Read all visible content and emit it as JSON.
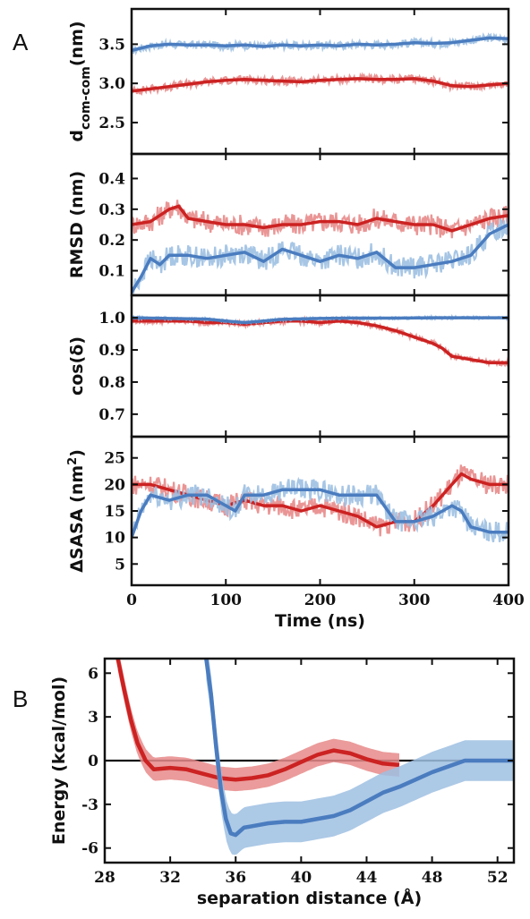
{
  "panel_labels": {
    "a": "A",
    "b": "B"
  },
  "colors": {
    "red": "#cc2222",
    "red_light": "#e88a8a",
    "blue": "#4a7cbf",
    "blue_light": "#9dc0e2",
    "axis": "#111111"
  },
  "chart_data": [
    {
      "id": "dcom",
      "type": "line",
      "ylabel": "d",
      "ylabel_sub": "com-com",
      "ylabel_suffix": "(nm)",
      "xlim": [
        0,
        400
      ],
      "ylim": [
        2.1,
        3.95
      ],
      "yticks": [
        "2.5",
        "3.0",
        "3.5"
      ],
      "yticks_values": [
        2.5,
        3.0,
        3.5
      ],
      "series": [
        {
          "color": "blue",
          "x": [
            0,
            20,
            40,
            60,
            80,
            100,
            120,
            140,
            160,
            180,
            200,
            220,
            240,
            260,
            280,
            300,
            320,
            340,
            360,
            380,
            400
          ],
          "y": [
            3.42,
            3.48,
            3.5,
            3.49,
            3.49,
            3.48,
            3.49,
            3.47,
            3.49,
            3.48,
            3.49,
            3.48,
            3.5,
            3.49,
            3.5,
            3.52,
            3.51,
            3.52,
            3.55,
            3.58,
            3.57
          ],
          "noise": 0.05
        },
        {
          "color": "red",
          "x": [
            0,
            20,
            40,
            60,
            80,
            100,
            120,
            140,
            160,
            180,
            200,
            220,
            240,
            260,
            280,
            300,
            320,
            340,
            360,
            380,
            400
          ],
          "y": [
            2.9,
            2.93,
            2.96,
            2.99,
            3.02,
            3.04,
            3.05,
            3.04,
            3.03,
            3.02,
            3.04,
            3.05,
            3.06,
            3.05,
            3.05,
            3.06,
            3.03,
            2.97,
            2.96,
            2.98,
            3.0
          ],
          "noise": 0.05
        }
      ]
    },
    {
      "id": "rmsd",
      "type": "line",
      "ylabel": "RMSD (nm)",
      "xlim": [
        0,
        400
      ],
      "ylim": [
        0.02,
        0.48
      ],
      "yticks": [
        "0.1",
        "0.2",
        "0.3",
        "0.4"
      ],
      "yticks_values": [
        0.1,
        0.2,
        0.3,
        0.4
      ],
      "series": [
        {
          "color": "red",
          "x": [
            0,
            20,
            40,
            50,
            60,
            80,
            100,
            120,
            140,
            160,
            180,
            200,
            220,
            240,
            260,
            280,
            300,
            320,
            340,
            360,
            380,
            400
          ],
          "y": [
            0.25,
            0.26,
            0.3,
            0.31,
            0.27,
            0.26,
            0.25,
            0.25,
            0.24,
            0.25,
            0.25,
            0.26,
            0.26,
            0.25,
            0.27,
            0.26,
            0.25,
            0.25,
            0.23,
            0.25,
            0.27,
            0.28
          ],
          "noise": 0.035
        },
        {
          "color": "blue",
          "x": [
            0,
            10,
            20,
            30,
            40,
            60,
            80,
            100,
            120,
            140,
            160,
            180,
            200,
            220,
            240,
            260,
            280,
            300,
            320,
            340,
            360,
            380,
            400
          ],
          "y": [
            0.03,
            0.08,
            0.14,
            0.12,
            0.15,
            0.15,
            0.14,
            0.15,
            0.16,
            0.13,
            0.17,
            0.15,
            0.13,
            0.15,
            0.14,
            0.16,
            0.11,
            0.11,
            0.12,
            0.13,
            0.15,
            0.22,
            0.25
          ],
          "noise": 0.035
        }
      ]
    },
    {
      "id": "cos",
      "type": "line",
      "ylabel": "cos(δ)",
      "xlim": [
        0,
        400
      ],
      "ylim": [
        0.63,
        1.07
      ],
      "yticks": [
        "0.7",
        "0.8",
        "0.9",
        "1.0"
      ],
      "yticks_values": [
        0.7,
        0.8,
        0.9,
        1.0
      ],
      "series": [
        {
          "color": "red",
          "x": [
            0,
            20,
            40,
            60,
            80,
            100,
            120,
            140,
            160,
            180,
            200,
            220,
            240,
            260,
            280,
            300,
            320,
            330,
            340,
            360,
            380,
            400
          ],
          "y": [
            0.99,
            0.99,
            0.99,
            0.99,
            0.985,
            0.985,
            0.98,
            0.985,
            0.99,
            0.99,
            0.985,
            0.99,
            0.985,
            0.975,
            0.96,
            0.94,
            0.92,
            0.905,
            0.88,
            0.87,
            0.86,
            0.86
          ],
          "noise": 0.008
        },
        {
          "color": "blue",
          "x": [
            0,
            40,
            80,
            100,
            120,
            140,
            160,
            200,
            240,
            280,
            320,
            360,
            400
          ],
          "y": [
            1.0,
            0.998,
            0.996,
            0.99,
            0.985,
            0.99,
            0.995,
            0.998,
            0.999,
            0.999,
            1.0,
            1.0,
            1.0
          ],
          "noise": 0.004
        }
      ]
    },
    {
      "id": "sasa",
      "type": "line",
      "ylabel": "ΔSASA (nm",
      "ylabel_sup": "2",
      "ylabel_suffix": ")",
      "xlabel": "Time (ns)",
      "xlim": [
        0,
        400
      ],
      "xticks": [
        "0",
        "100",
        "200",
        "300",
        "400"
      ],
      "xticks_values": [
        0,
        100,
        200,
        300,
        400
      ],
      "ylim": [
        1,
        29
      ],
      "yticks": [
        "5",
        "10",
        "15",
        "20",
        "25"
      ],
      "yticks_values": [
        5,
        10,
        15,
        20,
        25
      ],
      "series": [
        {
          "color": "red",
          "x": [
            0,
            20,
            40,
            60,
            80,
            100,
            120,
            140,
            160,
            180,
            200,
            220,
            240,
            260,
            280,
            300,
            320,
            340,
            350,
            360,
            380,
            400
          ],
          "y": [
            20,
            20,
            19,
            18,
            17,
            16,
            17,
            16,
            16,
            15,
            16,
            15,
            14,
            12,
            13,
            13,
            16,
            20,
            22,
            21,
            20,
            20
          ],
          "noise": 2.0
        },
        {
          "color": "blue",
          "x": [
            0,
            10,
            20,
            40,
            60,
            80,
            100,
            110,
            120,
            140,
            160,
            180,
            200,
            220,
            240,
            260,
            280,
            300,
            320,
            340,
            350,
            360,
            380,
            400
          ],
          "y": [
            10,
            15,
            18,
            17,
            18,
            18,
            16,
            15,
            18,
            18,
            19,
            19,
            19,
            18,
            18,
            18,
            13,
            13,
            14,
            16,
            15,
            12,
            11,
            11
          ],
          "noise": 2.0
        }
      ]
    },
    {
      "id": "energy",
      "type": "line",
      "ylabel": "Energy (kcal/mol)",
      "xlabel": "separation distance (Å)",
      "xlim": [
        28,
        53
      ],
      "xticks": [
        "28",
        "32",
        "36",
        "40",
        "44",
        "48",
        "52"
      ],
      "xticks_values": [
        28,
        32,
        36,
        40,
        44,
        48,
        52
      ],
      "ylim": [
        -7,
        7
      ],
      "yticks": [
        "-6",
        "-3",
        "0",
        "3",
        "6"
      ],
      "yticks_values": [
        -6,
        -3,
        0,
        3,
        6
      ],
      "zero_line": true,
      "series": [
        {
          "color": "red",
          "x": [
            28.8,
            29.2,
            29.6,
            30.0,
            30.5,
            31.0,
            32.0,
            33.0,
            34.0,
            35.0,
            36.0,
            37.0,
            38.0,
            39.0,
            40.0,
            41.0,
            42.0,
            43.0,
            44.0,
            45.0,
            46.0
          ],
          "y": [
            7.0,
            4.8,
            2.8,
            1.2,
            0.0,
            -0.6,
            -0.5,
            -0.6,
            -0.9,
            -1.2,
            -1.3,
            -1.2,
            -1.0,
            -0.6,
            -0.1,
            0.4,
            0.7,
            0.5,
            0.1,
            -0.2,
            -0.3
          ],
          "band": 0.8
        },
        {
          "color": "blue",
          "x": [
            34.2,
            34.5,
            34.8,
            35.1,
            35.4,
            35.7,
            36.0,
            36.5,
            37.0,
            38.0,
            39.0,
            40.0,
            41.0,
            42.0,
            43.0,
            44.0,
            45.0,
            46.0,
            47.0,
            48.0,
            49.0,
            50.0,
            51.0,
            52.0,
            53.0
          ],
          "y": [
            7.0,
            4.5,
            1.0,
            -2.0,
            -4.0,
            -5.0,
            -5.1,
            -4.6,
            -4.5,
            -4.3,
            -4.2,
            -4.2,
            -4.0,
            -3.8,
            -3.4,
            -2.8,
            -2.2,
            -1.8,
            -1.3,
            -0.8,
            -0.4,
            0.0,
            0.0,
            0.0,
            0.0
          ],
          "band": 1.4
        }
      ]
    }
  ]
}
